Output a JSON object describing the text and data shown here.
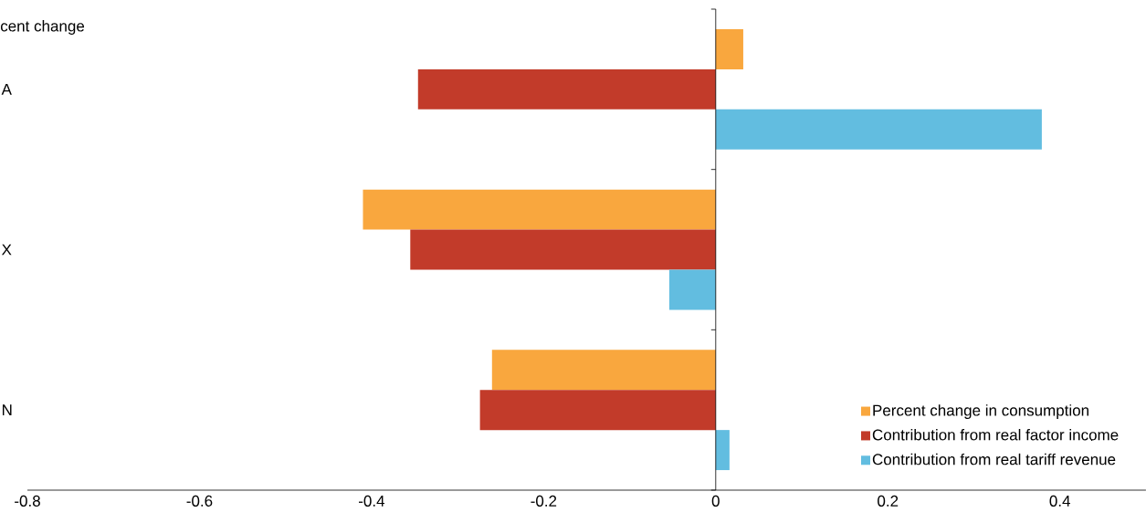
{
  "chart_data": {
    "type": "bar",
    "orientation": "horizontal",
    "ylabel": "cent change",
    "categories": [
      "A",
      "X",
      "N"
    ],
    "series": [
      {
        "name": "Percent change in consumption",
        "color": "#f9a73e",
        "values": [
          0.032,
          -0.41,
          -0.26
        ]
      },
      {
        "name": "Contribution from real factor income",
        "color": "#c23b2a",
        "values": [
          -0.346,
          -0.355,
          -0.274
        ]
      },
      {
        "name": "Contribution from real tariff revenue",
        "color": "#62bde0",
        "values": [
          0.379,
          -0.054,
          0.016
        ]
      }
    ],
    "xlim": [
      -0.8,
      0.5
    ],
    "xticks": [
      -0.8,
      -0.6,
      -0.4,
      -0.2,
      0,
      0.2,
      0.4
    ],
    "ref_lines": [
      {
        "axis": "x",
        "value": 0,
        "color": "#000000"
      }
    ],
    "grid": false,
    "legend": "bottom right"
  }
}
